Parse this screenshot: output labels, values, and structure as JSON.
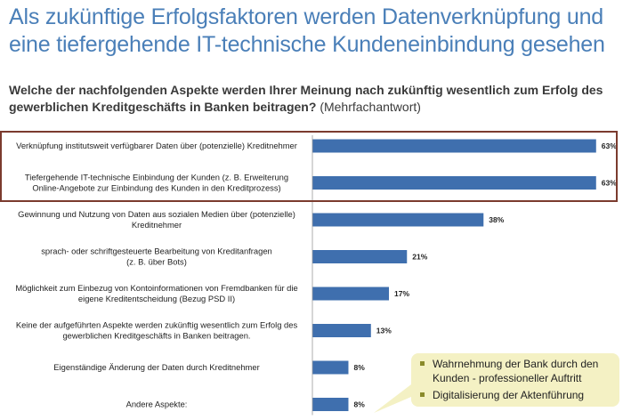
{
  "headline": {
    "line1": "Als zukünftige Erfolgsfaktoren werden Datenverknüpfung und",
    "line2": "eine tiefergehende IT-technische Kundeneinbindung gesehen"
  },
  "question": {
    "bold": "Welche der nachfolgenden Aspekte werden Ihrer Meinung nach zukünftig wesentlich zum Erfolg des gewerblichen Kreditgeschäfts in Banken beitragen?",
    "note": "(Mehrfachantwort)"
  },
  "callout": {
    "items": [
      "Wahrnehmung der Bank durch den Kunden - professioneller Auftritt",
      "Digitalisierung der Aktenführung"
    ]
  },
  "colors": {
    "bar": "#3f6fae",
    "headline": "#4a7fb8",
    "highlight_border": "#7b3b2e",
    "callout_bg": "#f4f1c4"
  },
  "chart_data": {
    "type": "bar",
    "orientation": "horizontal",
    "xlim": [
      0,
      100
    ],
    "categories": [
      [
        "Verknüpfung institutsweit verfügbarer Daten über (potenzielle) Kreditnehmer"
      ],
      [
        "Tiefergehende IT-technische Einbindung der Kunden (z. B. Erweiterung",
        "Online-Angebote zur Einbindung des Kunden in den Kreditprozess)"
      ],
      [
        "Gewinnung und Nutzung von Daten aus sozialen Medien über (potenzielle)",
        "Kreditnehmer"
      ],
      [
        "sprach- oder schriftgesteuerte Bearbeitung von Kreditanfragen",
        "(z. B. über Bots)"
      ],
      [
        "Möglichkeit zum Einbezug von Kontoinformationen von Fremdbanken für die",
        "eigene Kreditentscheidung (Bezug PSD II)"
      ],
      [
        "Keine der aufgeführten Aspekte werden zukünftig wesentlich zum Erfolg des",
        "gewerblichen Kreditgeschäfts in Banken beitragen."
      ],
      [
        "Eigenständige Änderung der Daten durch Kreditnehmer"
      ],
      [
        "Andere Aspekte:"
      ]
    ],
    "values": [
      63,
      63,
      38,
      21,
      17,
      13,
      8,
      8
    ],
    "value_labels": [
      "63%",
      "63%",
      "38%",
      "21%",
      "17%",
      "13%",
      "8%",
      "8%"
    ]
  }
}
